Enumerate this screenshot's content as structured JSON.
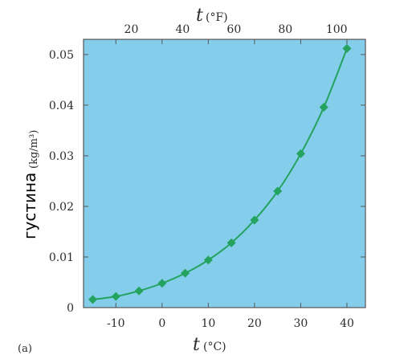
{
  "chart_data": {
    "type": "line",
    "x_axis": {
      "variable": "t",
      "unit": "(°C)",
      "range": [
        -17,
        44
      ],
      "ticks": [
        -10,
        0,
        10,
        20,
        30,
        40
      ],
      "tick_labels": [
        "-10",
        "0",
        "10",
        "20",
        "30",
        "40"
      ]
    },
    "x2_axis": {
      "variable": "t",
      "unit": "(°F)",
      "ticks": [
        20,
        40,
        60,
        80,
        100
      ],
      "tick_labels": [
        "20",
        "40",
        "60",
        "80",
        "100"
      ]
    },
    "y_axis": {
      "label": "густина",
      "unit": "(kg/m³)",
      "range": [
        0,
        0.053
      ],
      "ticks": [
        0,
        0.01,
        0.02,
        0.03,
        0.04,
        0.05
      ],
      "tick_labels": [
        "0",
        "0.01",
        "0.02",
        "0.03",
        "0.04",
        "0.05"
      ]
    },
    "series": [
      {
        "x": [
          -15,
          -10,
          -5,
          0,
          5,
          10,
          15,
          20,
          25,
          30,
          35,
          40
        ],
        "y": [
          0.0016,
          0.0022,
          0.0033,
          0.0048,
          0.0068,
          0.0094,
          0.0128,
          0.0173,
          0.023,
          0.0304,
          0.0396,
          0.0512
        ]
      }
    ],
    "panel_label": "(a)",
    "grid": false,
    "colors": {
      "plot_background": "#84cdeb",
      "series": "#23a35e",
      "frame": "#555555"
    }
  }
}
